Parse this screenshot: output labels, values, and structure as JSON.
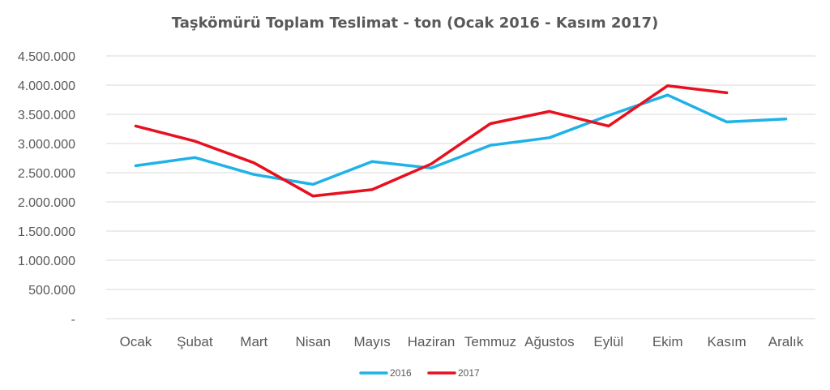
{
  "chart_data": {
    "type": "line",
    "title": "Taşkömürü Toplam Teslimat - ton (Ocak 2016 - Kasım 2017)",
    "categories": [
      "Ocak",
      "Şubat",
      "Mart",
      "Nisan",
      "Mayıs",
      "Haziran",
      "Temmuz",
      "Ağustos",
      "Eylül",
      "Ekim",
      "Kasım",
      "Aralık"
    ],
    "ylim": [
      0,
      4500000
    ],
    "yticks": [
      0,
      500000,
      1000000,
      1500000,
      2000000,
      2500000,
      3000000,
      3500000,
      4000000,
      4500000
    ],
    "ytick_labels": [
      "-",
      "500.000",
      "1.000.000",
      "1.500.000",
      "2.000.000",
      "2.500.000",
      "3.000.000",
      "3.500.000",
      "4.000.000",
      "4.500.000"
    ],
    "grid": true,
    "legend_position": "bottom",
    "series": [
      {
        "name": "2016",
        "color": "#1fb2e6",
        "values": [
          2620000,
          2760000,
          2470000,
          2300000,
          2690000,
          2580000,
          2970000,
          3100000,
          3480000,
          3830000,
          3370000,
          3420000
        ]
      },
      {
        "name": "2017",
        "color": "#e8101f",
        "values": [
          3300000,
          3040000,
          2670000,
          2100000,
          2210000,
          2650000,
          3340000,
          3550000,
          3300000,
          3990000,
          3870000,
          null
        ]
      }
    ]
  }
}
